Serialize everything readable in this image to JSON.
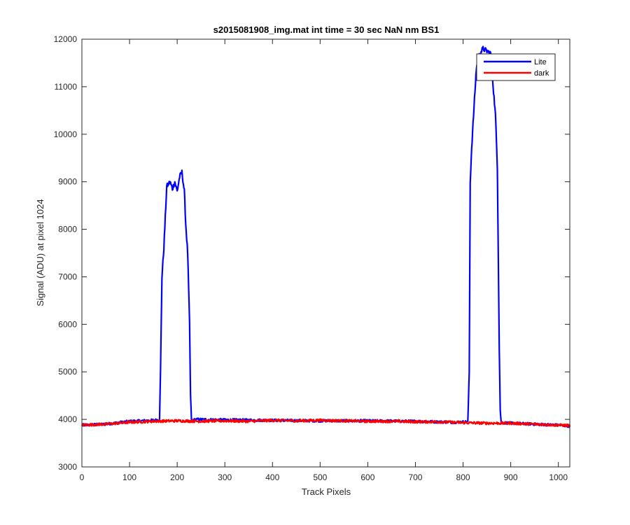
{
  "chart_data": {
    "type": "line",
    "title": "s2015081908_img.mat int time = 30 sec  NaN nm BS1",
    "xlabel": "Track Pixels",
    "ylabel": "Signal (ADU) at pixel 1024",
    "xlim": [
      0,
      1024
    ],
    "ylim": [
      3000,
      12000
    ],
    "x_ticks": [
      0,
      100,
      200,
      300,
      400,
      500,
      600,
      700,
      800,
      900,
      1000
    ],
    "y_ticks": [
      3000,
      4000,
      5000,
      6000,
      7000,
      8000,
      9000,
      10000,
      11000,
      12000
    ],
    "grid": false,
    "legend_position": "top-right",
    "series": [
      {
        "name": "Lite",
        "color": "#0000ff",
        "x": [
          0,
          50,
          100,
          150,
          160,
          163,
          165,
          168,
          172,
          178,
          185,
          190,
          195,
          200,
          205,
          210,
          215,
          218,
          222,
          226,
          228,
          230,
          240,
          300,
          400,
          500,
          600,
          700,
          780,
          810,
          813,
          815,
          818,
          822,
          828,
          835,
          842,
          850,
          858,
          864,
          868,
          872,
          876,
          878,
          880,
          900,
          950,
          1000,
          1024
        ],
        "y": [
          3880,
          3900,
          3960,
          3980,
          3990,
          4020,
          5000,
          7000,
          7600,
          8900,
          9000,
          8850,
          9000,
          8800,
          9100,
          9200,
          8800,
          8100,
          7500,
          6000,
          4500,
          3980,
          4000,
          3990,
          3980,
          3970,
          3970,
          3960,
          3940,
          3950,
          5000,
          9000,
          9700,
          10400,
          11400,
          11700,
          11800,
          11750,
          11700,
          10900,
          10400,
          9300,
          5500,
          4200,
          3930,
          3920,
          3900,
          3880,
          3860
        ]
      },
      {
        "name": "dark",
        "color": "#ff0000",
        "x": [
          0,
          50,
          100,
          150,
          200,
          250,
          300,
          350,
          400,
          450,
          500,
          550,
          600,
          650,
          700,
          750,
          800,
          850,
          900,
          950,
          1000,
          1024
        ],
        "y": [
          3880,
          3900,
          3940,
          3960,
          3970,
          3960,
          3970,
          3960,
          3980,
          3970,
          3980,
          3970,
          3960,
          3960,
          3950,
          3950,
          3930,
          3920,
          3920,
          3900,
          3880,
          3870
        ]
      }
    ]
  }
}
